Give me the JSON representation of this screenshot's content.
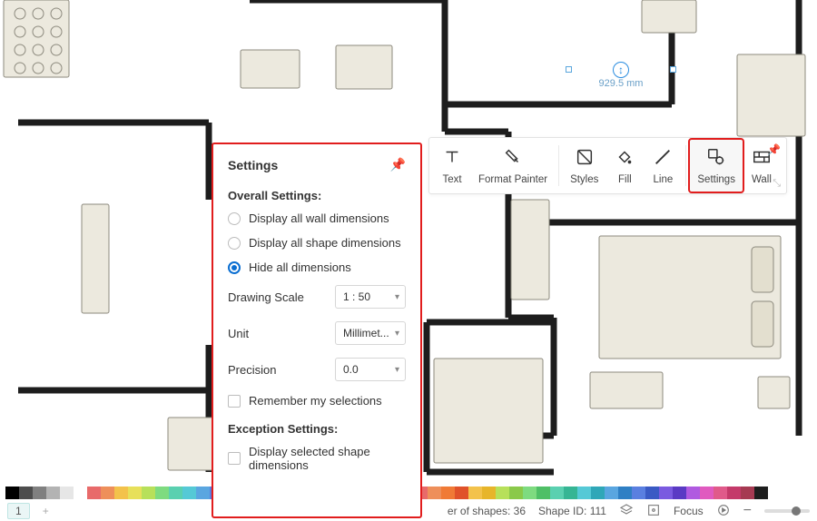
{
  "canvas": {
    "background_color": "#ffffff",
    "wall_color": "#1d1d1d",
    "furniture_fill": "#ece9de",
    "furniture_stroke": "#8d8a7e"
  },
  "dimension_callout": {
    "value": "929.5 mm",
    "color": "#6aa0c8",
    "handle_color": "#2b8de0"
  },
  "toolbar": {
    "tools": [
      {
        "id": "text",
        "label": "Text"
      },
      {
        "id": "format",
        "label": "Format Painter"
      },
      {
        "id": "styles",
        "label": "Styles"
      },
      {
        "id": "fill",
        "label": "Fill"
      },
      {
        "id": "line",
        "label": "Line"
      },
      {
        "id": "settings",
        "label": "Settings"
      },
      {
        "id": "wall",
        "label": "Wall"
      }
    ],
    "highlighted": "settings"
  },
  "settings_panel": {
    "title": "Settings",
    "border_color": "#e11d1d",
    "section_overall": "Overall Settings:",
    "radios": {
      "opt1": "Display all wall dimensions",
      "opt2": "Display all shape dimensions",
      "opt3": "Hide all dimensions",
      "selected": "opt3"
    },
    "rows": {
      "scale_label": "Drawing Scale",
      "scale_value": "1 : 50",
      "unit_label": "Unit",
      "unit_value": "Millimet...",
      "precision_label": "Precision",
      "precision_value": "0.0"
    },
    "remember": "Remember my selections",
    "section_exception": "Exception Settings:",
    "exception_check": "Display selected shape dimensions"
  },
  "color_swatches": [
    "#000000",
    "#4d4d4d",
    "#808080",
    "#b3b3b3",
    "#e6e6e6",
    "#ffffff",
    "#e86a6a",
    "#ee8f5a",
    "#f3c24b",
    "#e7e05a",
    "#b7e05a",
    "#7edb80",
    "#5ad0b0",
    "#55c9d6",
    "#5aa6e0",
    "#5a7fe0",
    "#7a5ae0",
    "#b05ae0",
    "#e05abf",
    "#e05a8a",
    "#d7cfc0",
    "#c9bfa6",
    "#b5a98a",
    "#c2a56e",
    "#b38950",
    "#9b6e3a",
    "#7a5a3a",
    "#5a4a3a",
    "#8baed6",
    "#6f95c4",
    "#e86a6a",
    "#ee8f5a",
    "#f07a36",
    "#e0522a",
    "#f3c24b",
    "#e7b52a",
    "#b7e05a",
    "#8ac94a",
    "#7edb80",
    "#4fbf66",
    "#5ad0b0",
    "#36b594",
    "#55c9d6",
    "#2fa7b8",
    "#5aa6e0",
    "#2f7fc4",
    "#5a7fe0",
    "#3a5ac4",
    "#7a5ae0",
    "#5a3ac4",
    "#b05ae0",
    "#e05abf",
    "#e05a8a",
    "#c43a6a",
    "#a63a52",
    "#1d1d1d"
  ],
  "status": {
    "tab_label": "1",
    "shape_count_label": "er of shapes:",
    "shape_count": "36",
    "shape_id_label": "Shape ID:",
    "shape_id": "111",
    "focus": "Focus"
  }
}
